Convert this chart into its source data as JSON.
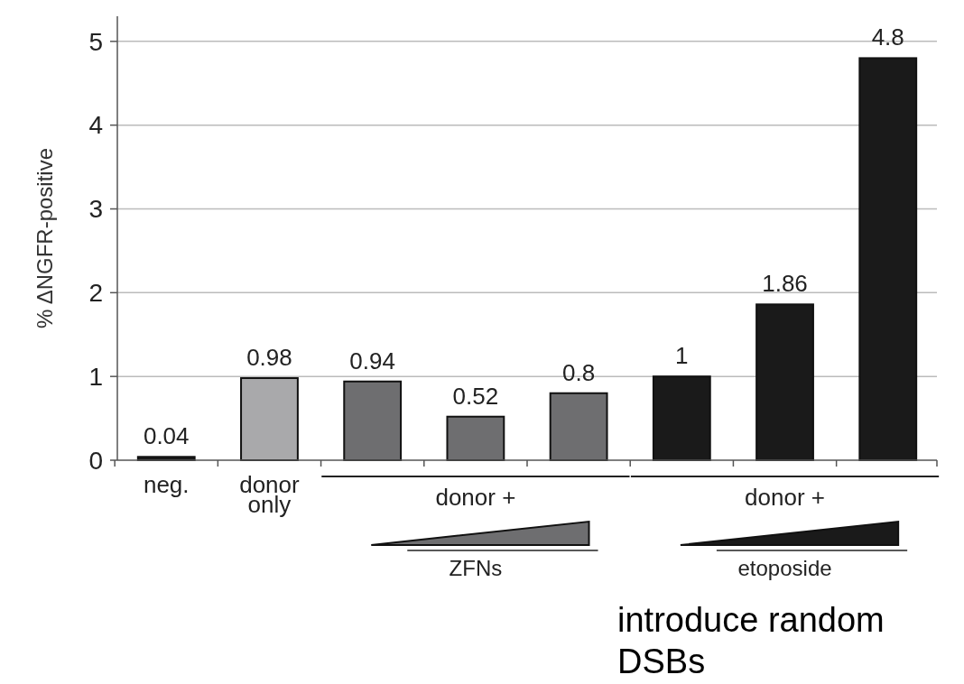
{
  "chart_data": {
    "type": "bar",
    "ylabel": "% ΔNGFR-positive",
    "categories": [
      "neg.",
      "donor only",
      null,
      null,
      null,
      null,
      null,
      null
    ],
    "values": [
      0.04,
      0.98,
      0.94,
      0.52,
      0.8,
      1,
      1.86,
      4.8
    ],
    "colors": [
      "#1a1a1a",
      "#a9a9ab",
      "#6e6e70",
      "#6e6e70",
      "#6e6e70",
      "#1a1a1a",
      "#1a1a1a",
      "#1a1a1a"
    ],
    "ylim": [
      0,
      5.3
    ],
    "yticks": [
      0,
      1,
      2,
      3,
      4,
      5
    ],
    "grid": "y",
    "data_labels": true,
    "annotations": [
      "donor +",
      "ZFNs",
      "donor +",
      "etoposide",
      "introduce random DSBs"
    ]
  }
}
